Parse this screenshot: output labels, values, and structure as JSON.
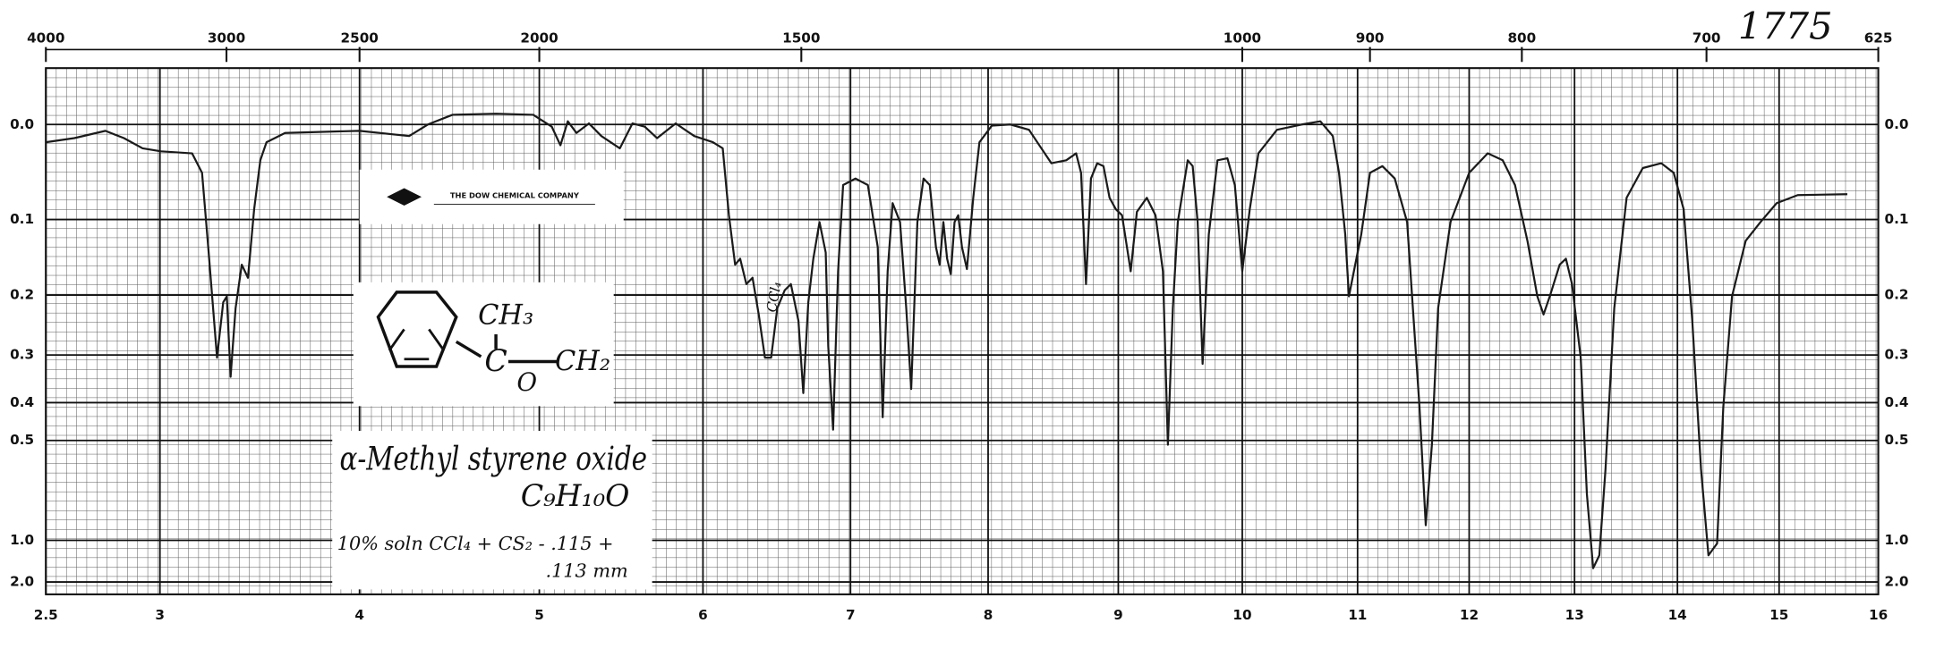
{
  "chart_data": {
    "type": "line",
    "title": "α-Methyl styrene oxide",
    "formula": "C₉H₁₀O",
    "note": [
      "10% soln CCl₄ + CS₂ - .115 +",
      ".113 mm"
    ],
    "sample_number": "1775",
    "company": "THE DOW CHEMICAL COMPANY",
    "structure_labels": [
      "CH₃",
      "C",
      "CH₂",
      "O"
    ],
    "solvent_band": "CCl₄",
    "color": "#1a1a1a",
    "xlim": [
      2.5,
      16
    ],
    "xticks": [
      2.5,
      3,
      4,
      5,
      6,
      7,
      8,
      9,
      10,
      11,
      12,
      13,
      14,
      15,
      16
    ],
    "x2ticks": [
      4000,
      3000,
      2500,
      2000,
      1500,
      1000,
      900,
      800,
      700,
      625
    ],
    "ylim": [
      -0.05,
      2
    ],
    "yticks": [
      {
        "value": 0,
        "label": "0.0"
      },
      0.1,
      0.2,
      0.3,
      0.4,
      0.5,
      {
        "value": 1,
        "label": "1.0"
      },
      {
        "value": 2,
        "label": "2.0"
      }
    ],
    "yscale": "absorbance",
    "grid": true,
    "x": [
      2.5,
      2.625,
      2.761,
      2.842,
      2.924,
      3.006,
      3.161,
      3.211,
      3.242,
      3.286,
      3.317,
      3.335,
      3.354,
      3.379,
      3.41,
      3.441,
      3.472,
      3.503,
      3.534,
      3.627,
      4.0,
      4.276,
      4.38,
      4.517,
      4.759,
      4.966,
      5.076,
      5.129,
      5.174,
      5.227,
      5.303,
      5.379,
      5.492,
      5.569,
      5.644,
      5.72,
      5.833,
      5.947,
      6.067,
      6.134,
      6.176,
      6.218,
      6.252,
      6.294,
      6.336,
      6.378,
      6.42,
      6.462,
      6.504,
      6.554,
      6.596,
      6.647,
      6.68,
      6.714,
      6.748,
      6.79,
      6.832,
      6.849,
      6.882,
      6.916,
      6.95,
      7.036,
      7.126,
      7.198,
      7.234,
      7.27,
      7.306,
      7.36,
      7.405,
      7.441,
      7.486,
      7.531,
      7.576,
      7.621,
      7.648,
      7.675,
      7.702,
      7.729,
      7.756,
      7.783,
      7.81,
      7.846,
      7.892,
      7.937,
      8.029,
      8.171,
      8.314,
      8.409,
      8.486,
      8.6,
      8.676,
      8.714,
      8.752,
      8.79,
      8.838,
      8.886,
      8.933,
      8.981,
      9.03,
      9.1,
      9.15,
      9.23,
      9.3,
      9.36,
      9.4,
      9.44,
      9.48,
      9.56,
      9.6,
      9.64,
      9.68,
      9.73,
      9.8,
      9.88,
      9.94,
      10.0,
      10.065,
      10.14,
      10.301,
      10.516,
      10.677,
      10.785,
      10.839,
      10.893,
      10.925,
      10.968,
      11.033,
      11.111,
      11.222,
      11.333,
      11.444,
      11.555,
      11.611,
      11.666,
      11.722,
      11.833,
      12.0,
      12.176,
      12.318,
      12.435,
      12.553,
      12.647,
      12.706,
      12.765,
      12.859,
      12.918,
      12.976,
      13.06,
      13.12,
      13.181,
      13.241,
      13.301,
      13.386,
      13.506,
      13.663,
      13.843,
      13.964,
      14.061,
      14.146,
      14.232,
      14.305,
      14.39,
      14.451,
      14.537,
      14.671,
      14.817,
      14.976,
      15.188,
      15.688
    ],
    "values": [
      0.017,
      0.013,
      0.006,
      0.013,
      0.023,
      0.026,
      0.028,
      0.048,
      0.134,
      0.305,
      0.211,
      0.202,
      0.343,
      0.22,
      0.157,
      0.175,
      0.088,
      0.035,
      0.017,
      0.008,
      0.006,
      0.011,
      0,
      -0.009,
      -0.01,
      -0.009,
      0.002,
      0.02,
      -0.003,
      0.008,
      -0.001,
      0.011,
      0.023,
      -0.001,
      0.002,
      0.013,
      -0.001,
      0.011,
      0.017,
      0.023,
      0.095,
      0.157,
      0.149,
      0.184,
      0.175,
      0.23,
      0.305,
      0.305,
      0.22,
      0.193,
      0.184,
      0.24,
      0.378,
      0.211,
      0.149,
      0.103,
      0.141,
      0.283,
      0.469,
      0.166,
      0.061,
      0.054,
      0.061,
      0.134,
      0.436,
      0.166,
      0.081,
      0.103,
      0.22,
      0.369,
      0.103,
      0.054,
      0.061,
      0.134,
      0.157,
      0.103,
      0.149,
      0.17,
      0.103,
      0.095,
      0.134,
      0.163,
      0.075,
      0.017,
      0.001,
      0,
      0.005,
      0.023,
      0.038,
      0.035,
      0.028,
      0.048,
      0.184,
      0.054,
      0.038,
      0.041,
      0.075,
      0.088,
      0.095,
      0.166,
      0.091,
      0.075,
      0.095,
      0.166,
      0.513,
      0.22,
      0.103,
      0.035,
      0.041,
      0.103,
      0.317,
      0.118,
      0.035,
      0.033,
      0.061,
      0.166,
      0.088,
      0.028,
      0.005,
      0,
      -0.003,
      0.011,
      0.048,
      0.118,
      0.202,
      0.166,
      0.118,
      0.048,
      0.041,
      0.054,
      0.103,
      0.411,
      0.877,
      0.513,
      0.22,
      0.103,
      0.048,
      0.028,
      0.035,
      0.061,
      0.126,
      0.202,
      0.23,
      0.202,
      0.157,
      0.149,
      0.184,
      0.305,
      0.699,
      1.4,
      1.17,
      0.595,
      0.22,
      0.075,
      0.043,
      0.038,
      0.048,
      0.088,
      0.24,
      0.595,
      1.17,
      1.03,
      0.411,
      0.202,
      0.126,
      0.103,
      0.081,
      0.072,
      0.071
    ]
  }
}
